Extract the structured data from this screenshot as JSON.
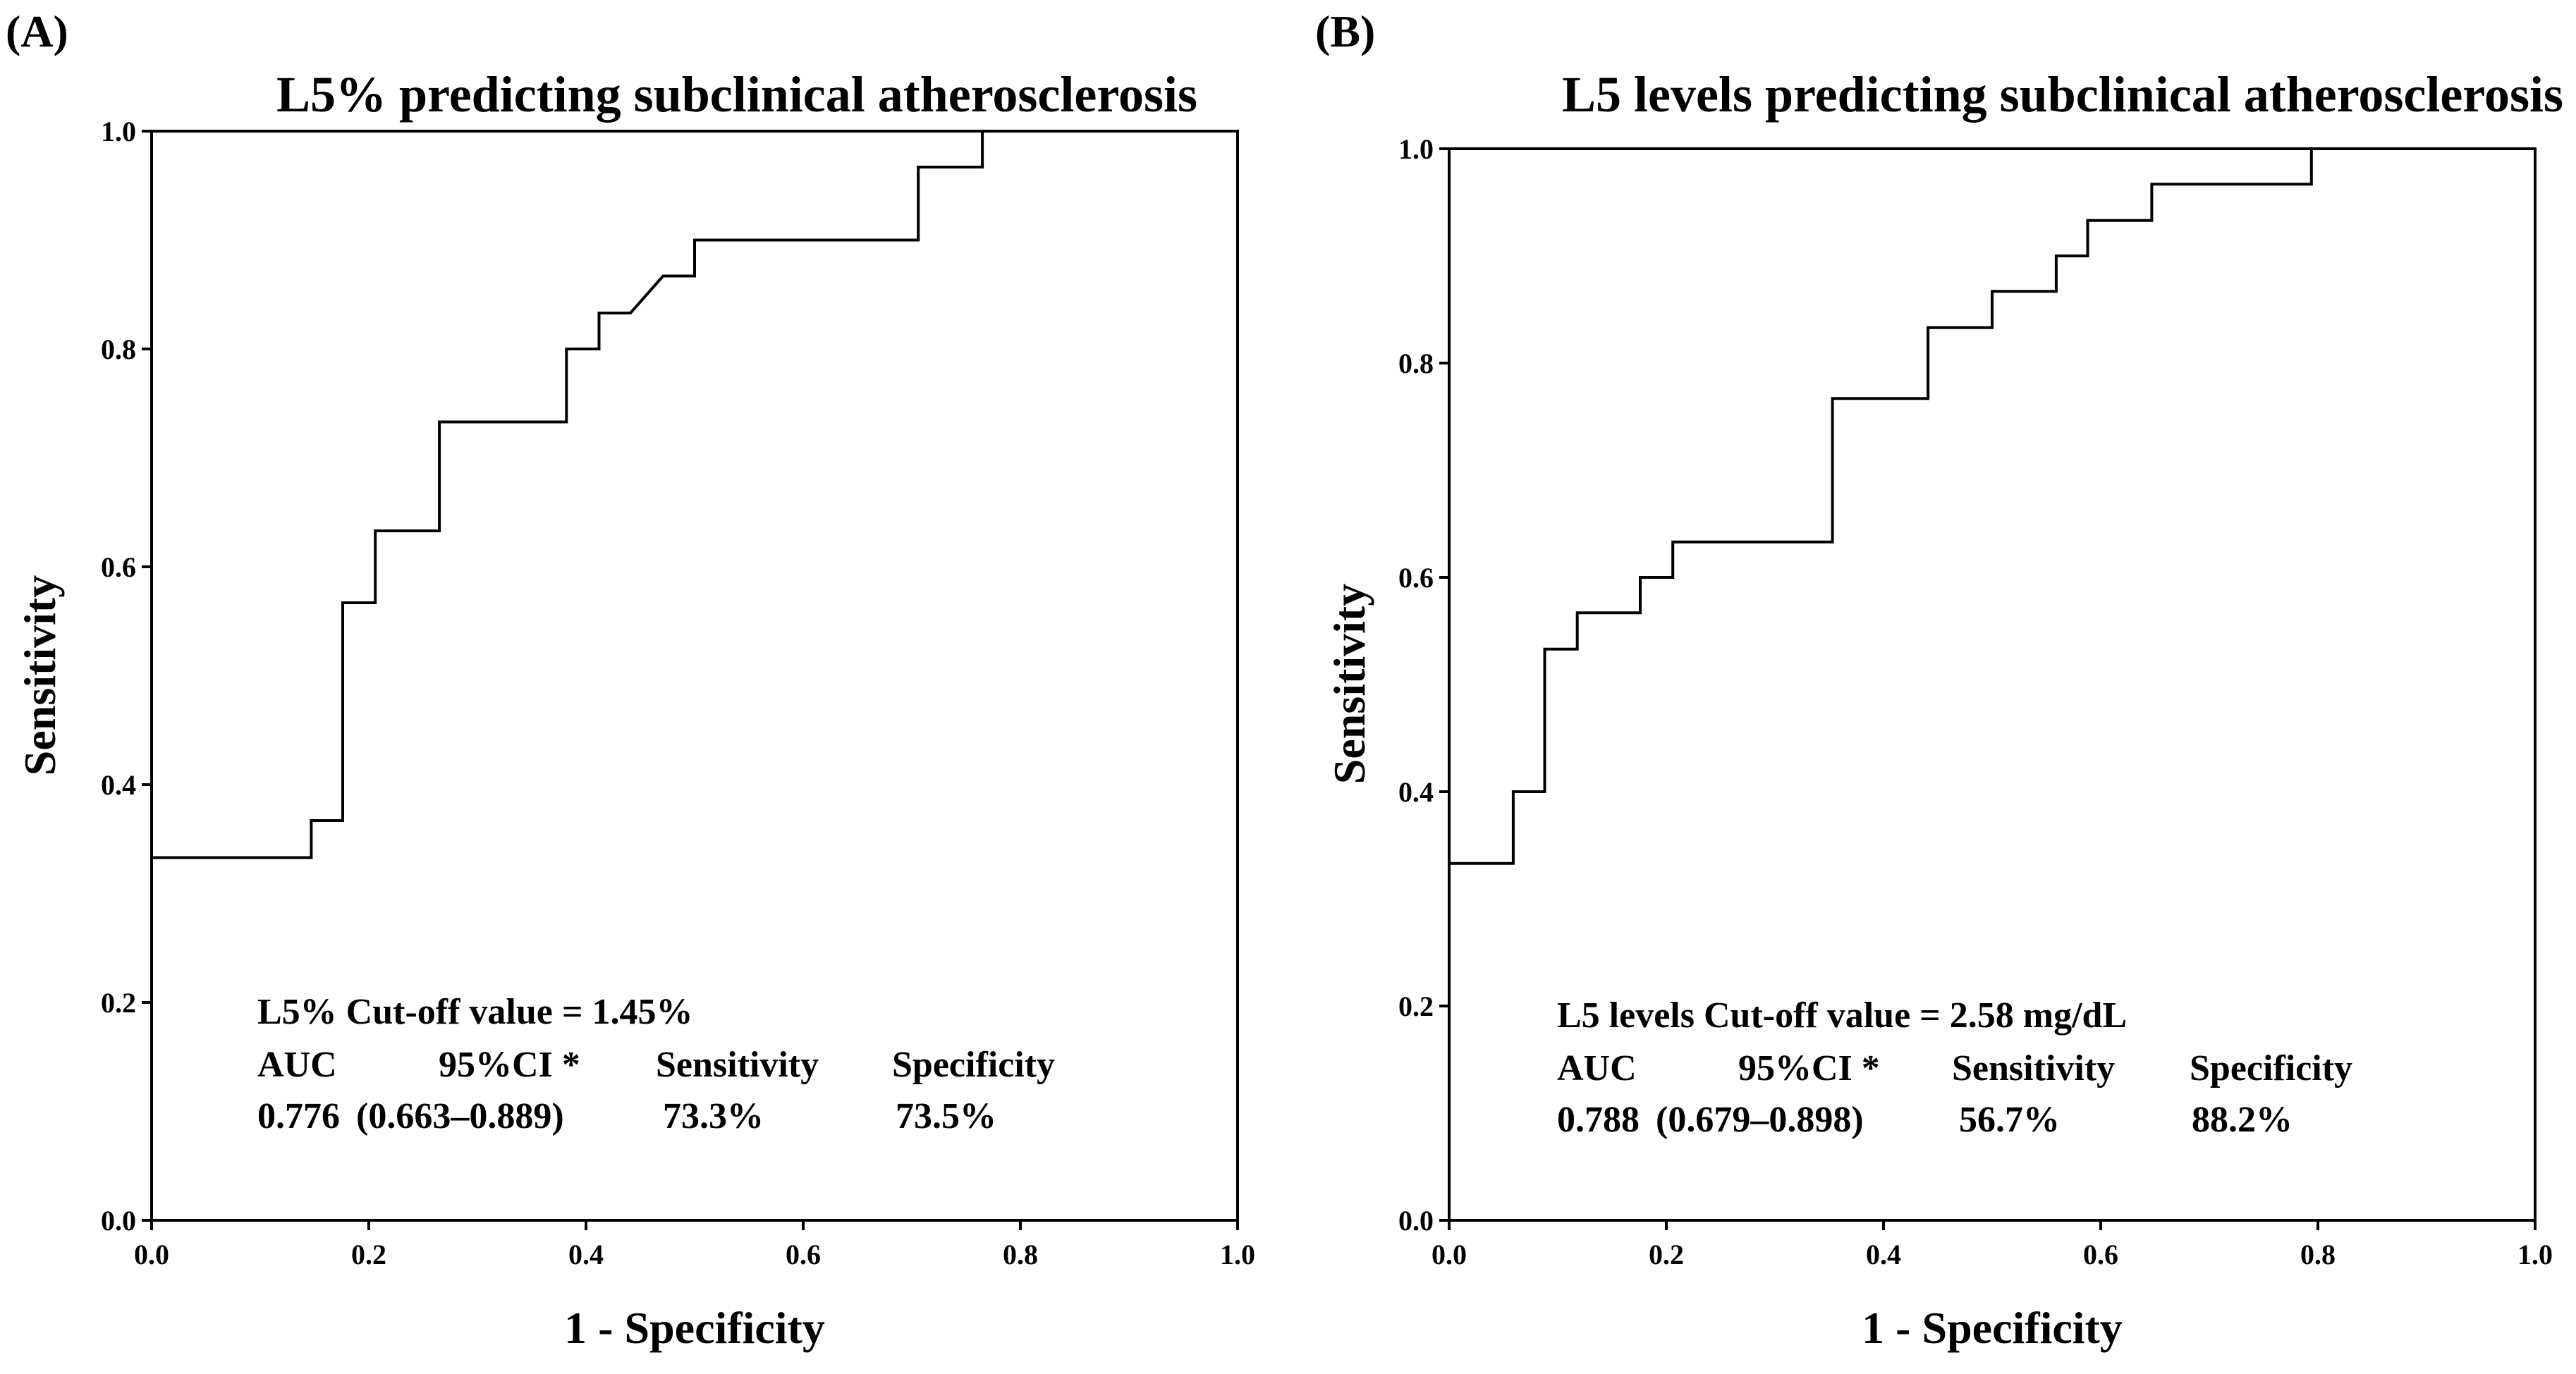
{
  "chart_data": [
    {
      "type": "line",
      "panel_label": "(A)",
      "title": "L5% predicting subclinical atherosclerosis",
      "xlabel": "1 - Specificity",
      "ylabel": "Sensitivity",
      "xlim": [
        0,
        1
      ],
      "ylim": [
        0,
        1
      ],
      "xticks": [
        "0.0",
        "0.2",
        "0.4",
        "0.6",
        "0.8",
        "1.0"
      ],
      "yticks": [
        "0.0",
        "0.2",
        "0.4",
        "0.6",
        "0.8",
        "1.0"
      ],
      "grid": false,
      "series": [
        {
          "name": "ROC",
          "x": [
            0,
            0,
            0.147,
            0.147,
            0.176,
            0.176,
            0.206,
            0.206,
            0.265,
            0.265,
            0.382,
            0.382,
            0.412,
            0.412,
            0.441,
            0.471,
            0.5,
            0.5,
            0.706,
            0.706,
            0.765,
            0.765,
            1.0
          ],
          "y": [
            0,
            0.333,
            0.333,
            0.367,
            0.367,
            0.567,
            0.567,
            0.633,
            0.633,
            0.733,
            0.733,
            0.8,
            0.8,
            0.833,
            0.833,
            0.867,
            0.867,
            0.9,
            0.9,
            0.967,
            0.967,
            1.0,
            1.0
          ]
        }
      ],
      "annotation": {
        "cutoff": "L5% Cut-off value = 1.45%",
        "headers": [
          "AUC",
          "95%CI *",
          "Sensitivity",
          "Specificity"
        ],
        "auc": "0.776",
        "ci": "(0.663–0.889)",
        "sensitivity": "73.3%",
        "specificity": "73.5%"
      }
    },
    {
      "type": "line",
      "panel_label": "(B)",
      "title": "L5 levels predicting subclinical atherosclerosis",
      "xlabel": "1 - Specificity",
      "ylabel": "Sensitivity",
      "xlim": [
        0,
        1
      ],
      "ylim": [
        0,
        1
      ],
      "xticks": [
        "0.0",
        "0.2",
        "0.4",
        "0.6",
        "0.8",
        "1.0"
      ],
      "yticks": [
        "0.0",
        "0.2",
        "0.4",
        "0.6",
        "0.8",
        "1.0"
      ],
      "grid": false,
      "series": [
        {
          "name": "ROC",
          "x": [
            0,
            0,
            0.059,
            0.059,
            0.088,
            0.088,
            0.118,
            0.118,
            0.176,
            0.176,
            0.206,
            0.206,
            0.353,
            0.353,
            0.441,
            0.441,
            0.5,
            0.5,
            0.559,
            0.559,
            0.588,
            0.588,
            0.647,
            0.647,
            0.794,
            0.794,
            1.0
          ],
          "y": [
            0,
            0.333,
            0.333,
            0.4,
            0.4,
            0.533,
            0.533,
            0.567,
            0.567,
            0.6,
            0.6,
            0.633,
            0.633,
            0.767,
            0.767,
            0.833,
            0.833,
            0.867,
            0.867,
            0.9,
            0.9,
            0.933,
            0.933,
            0.967,
            0.967,
            1.0,
            1.0
          ]
        }
      ],
      "annotation": {
        "cutoff": "L5 levels Cut-off value = 2.58 mg/dL",
        "headers": [
          "AUC",
          "95%CI *",
          "Sensitivity",
          "Specificity"
        ],
        "auc": "0.788",
        "ci": "(0.679–0.898)",
        "sensitivity": "56.7%",
        "specificity": "88.2%"
      }
    }
  ]
}
